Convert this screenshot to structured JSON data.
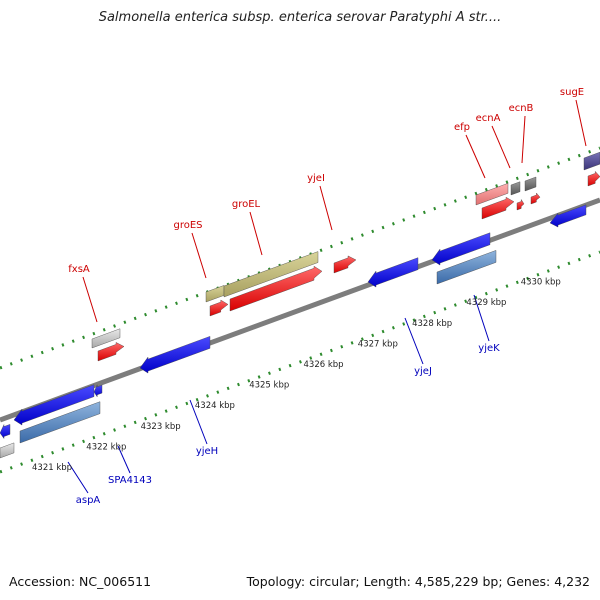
{
  "title": "Salmonella enterica subsp. enterica serovar Paratyphi A str....",
  "footer": {
    "accession": "Accession: NC_006511",
    "summary": "Topology: circular; Length: 4,585,229 bp; Genes: 4,232"
  },
  "colors": {
    "backbone": "#7d7d7d",
    "dots": "#2e8b2e",
    "forward_label": "#cc0000",
    "reverse_label": "#0000bb",
    "kbp_label": "#222222"
  },
  "kbp_ticks": [
    "4321 kbp",
    "4322 kbp",
    "4323 kbp",
    "4324 kbp",
    "4325 kbp",
    "4326 kbp",
    "4327 kbp",
    "4328 kbp",
    "4329 kbp",
    "4330 kbp"
  ],
  "forward_genes": [
    {
      "label": "fxsA",
      "color": "red"
    },
    {
      "label": "groES",
      "color": "red"
    },
    {
      "label": "groEL",
      "color": "red"
    },
    {
      "label": "yjeI",
      "color": "red"
    },
    {
      "label": "efp",
      "color": "red"
    },
    {
      "label": "ecnA",
      "color": "red"
    },
    {
      "label": "ecnB",
      "color": "red"
    },
    {
      "label": "sugE",
      "color": "red"
    }
  ],
  "reverse_genes": [
    {
      "label": "aspA",
      "color": "blue"
    },
    {
      "label": "SPA4143",
      "color": "blue"
    },
    {
      "label": "yjeH",
      "color": "blue"
    },
    {
      "label": "yjeJ",
      "color": "blue"
    },
    {
      "label": "yjeK",
      "color": "blue"
    }
  ]
}
